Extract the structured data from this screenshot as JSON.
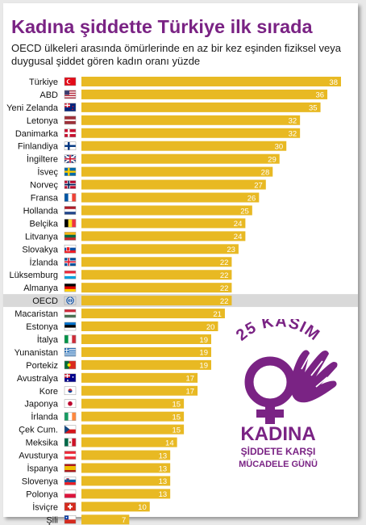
{
  "title": "Kadına şiddette Türkiye ilk sırada",
  "subtitle_line1": "OECD ülkeleri arasında ömürlerinde en az bir kez eşinden fiziksel veya",
  "subtitle_line2": "duygusal şiddet gören kadın oranı yüzde",
  "colors": {
    "bar": "#e8b923",
    "title": "#7a2384",
    "logo": "#7a2384",
    "highlight_row": "#d9d9d9"
  },
  "logo": {
    "top": "25 KASIM",
    "middle": "KADINA",
    "line3": "ŞİDDETE KARŞI",
    "line4": "MÜCADELE GÜNÜ"
  },
  "chart_data": {
    "type": "bar",
    "orientation": "horizontal",
    "highlight": "OECD",
    "categories": [
      "Türkiye",
      "ABD",
      "Yeni Zelanda",
      "Letonya",
      "Danimarka",
      "Finlandiya",
      "İngiltere",
      "İsveç",
      "Norveç",
      "Fransa",
      "Hollanda",
      "Belçika",
      "Litvanya",
      "Slovakya",
      "İzlanda",
      "Lüksemburg",
      "Almanya",
      "OECD",
      "Macaristan",
      "Estonya",
      "İtalya",
      "Yunanistan",
      "Portekiz",
      "Avustralya",
      "Kore",
      "Japonya",
      "İrlanda",
      "Çek Cum.",
      "Meksika",
      "Avusturya",
      "İspanya",
      "Slovenya",
      "Polonya",
      "İsviçre",
      "Şili"
    ],
    "values": [
      38,
      36,
      35,
      32,
      32,
      30,
      29,
      28,
      27,
      26,
      25,
      24,
      24,
      23,
      22,
      22,
      22,
      22,
      21,
      20,
      19,
      19,
      19,
      17,
      17,
      15,
      15,
      15,
      14,
      13,
      13,
      13,
      13,
      10,
      7
    ],
    "flags": [
      "flag-turkey",
      "flag-usa",
      "flag-new-zealand",
      "flag-latvia",
      "flag-denmark",
      "flag-finland",
      "flag-uk",
      "flag-sweden",
      "flag-norway",
      "flag-france",
      "flag-netherlands",
      "flag-belgium",
      "flag-lithuania",
      "flag-slovakia",
      "flag-iceland",
      "flag-luxembourg",
      "flag-germany",
      "flag-oecd",
      "flag-hungary",
      "flag-estonia",
      "flag-italy",
      "flag-greece",
      "flag-portugal",
      "flag-australia",
      "flag-korea",
      "flag-japan",
      "flag-ireland",
      "flag-czech",
      "flag-mexico",
      "flag-austria",
      "flag-spain",
      "flag-slovenia",
      "flag-poland",
      "flag-switzerland",
      "flag-chile"
    ]
  }
}
